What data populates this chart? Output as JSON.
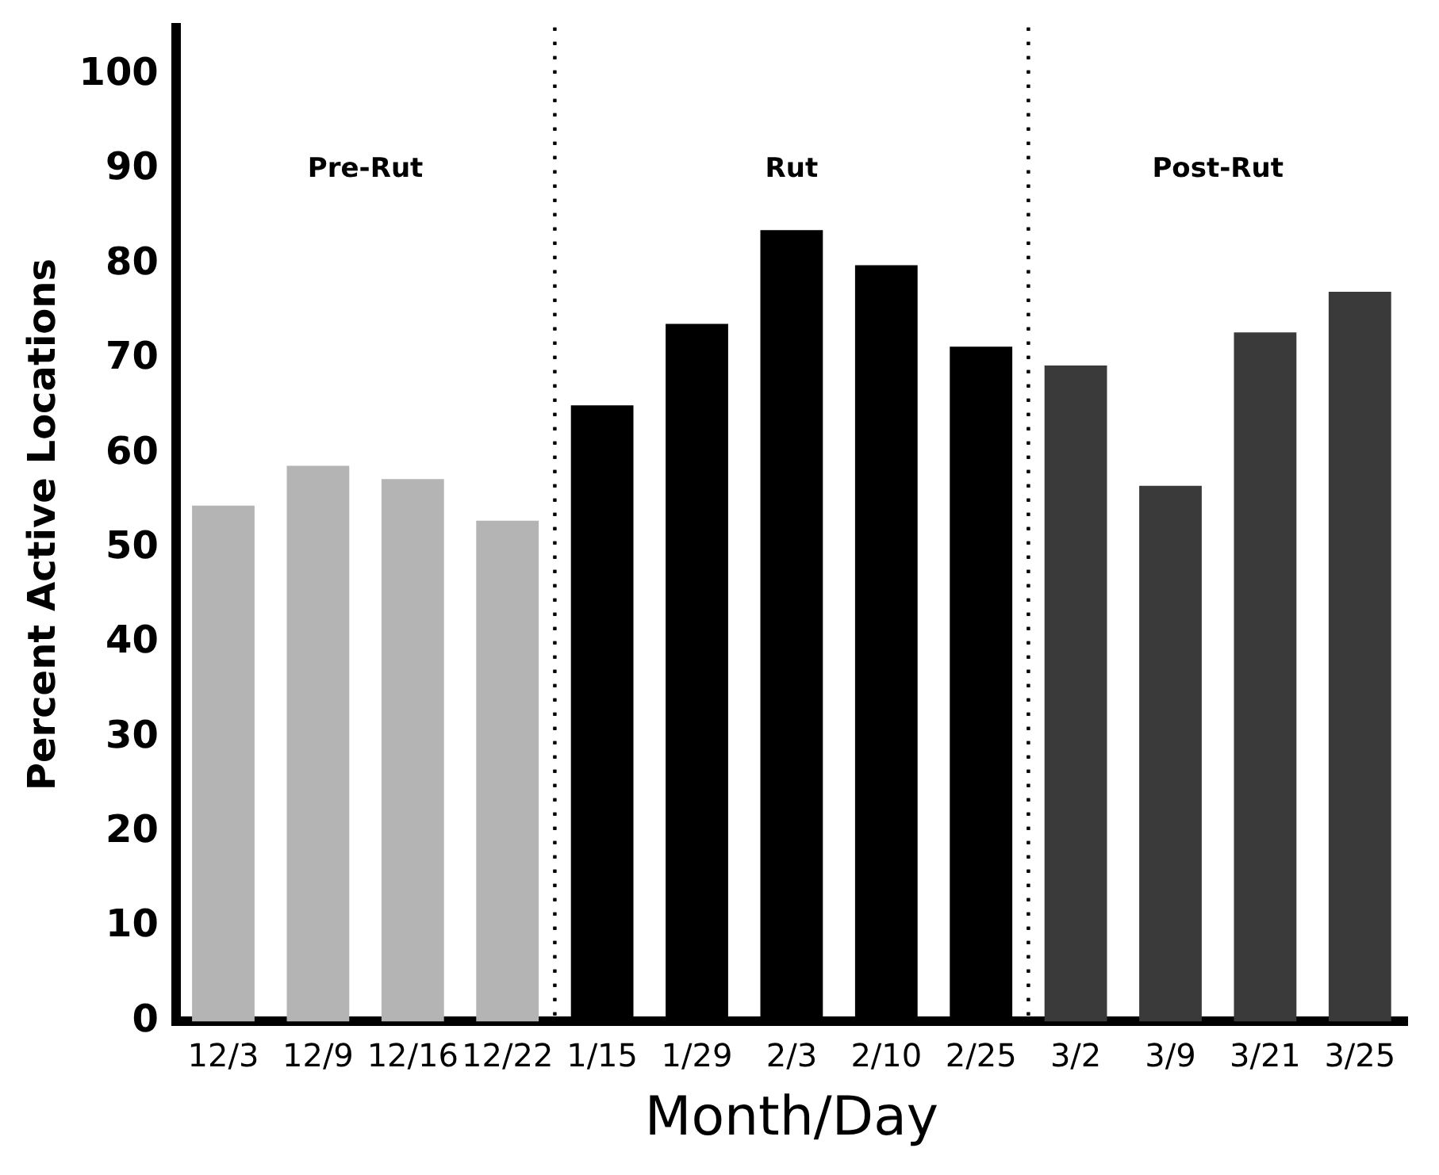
{
  "chart_data": {
    "type": "bar",
    "xlabel": "Month/Day",
    "ylabel": "Percent Active Locations",
    "categories": [
      "12/3",
      "12/9",
      "12/16",
      "12/22",
      "1/15",
      "1/29",
      "2/3",
      "2/10",
      "2/25",
      "3/2",
      "3/9",
      "3/21",
      "3/25"
    ],
    "values": [
      54.5,
      58.7,
      57.3,
      52.9,
      65.1,
      73.7,
      83.6,
      79.9,
      71.3,
      69.3,
      56.6,
      72.8,
      77.1
    ],
    "colors": [
      "#b4b4b4",
      "#b4b4b4",
      "#b4b4b4",
      "#b4b4b4",
      "#000000",
      "#000000",
      "#000000",
      "#000000",
      "#000000",
      "#3a3a3a",
      "#3a3a3a",
      "#3a3a3a",
      "#3a3a3a"
    ],
    "ylim": [
      0,
      105
    ],
    "yticks": [
      0,
      10,
      20,
      30,
      40,
      50,
      60,
      70,
      80,
      90,
      100
    ],
    "annotations": [
      "Pre-Rut",
      "Rut",
      "Post-Rut"
    ],
    "grid": false,
    "legend": false
  }
}
